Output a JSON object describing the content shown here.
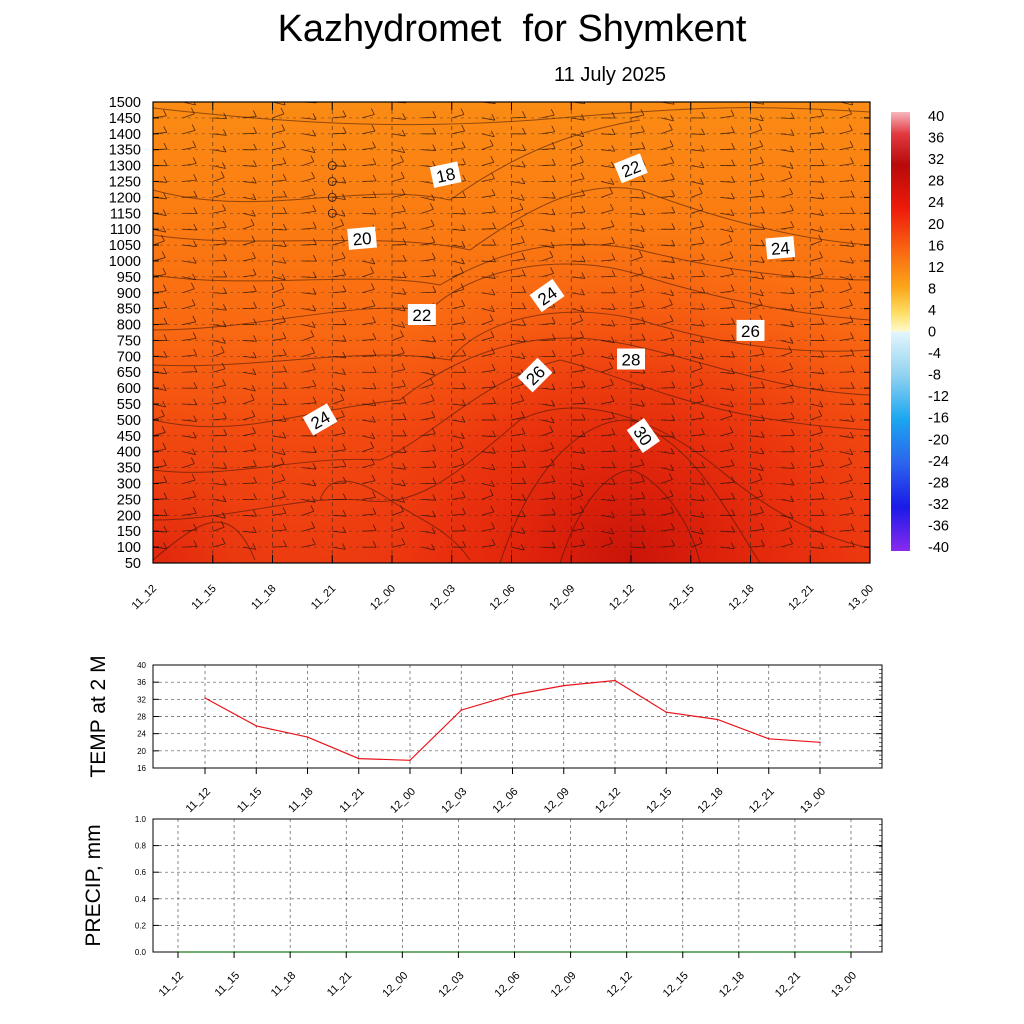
{
  "header": {
    "title": "Kazhydromet  for Shymkent",
    "date": "11 July 2025"
  },
  "time_labels": [
    "11_12",
    "11_15",
    "11_18",
    "11_21",
    "12_00",
    "12_03",
    "12_06",
    "12_09",
    "12_12",
    "12_15",
    "12_18",
    "12_21",
    "13_00"
  ],
  "chart_data": [
    {
      "type": "heatmap",
      "name": "vertical-cross-section",
      "x_tick_labels": [
        "11_12",
        "11_15",
        "11_18",
        "11_21",
        "12_00",
        "12_03",
        "12_06",
        "12_09",
        "12_12",
        "12_15",
        "12_18",
        "12_21",
        "13_00"
      ],
      "y_tick_labels": [
        "1500",
        "1450",
        "1400",
        "1350",
        "1300",
        "1250",
        "1200",
        "1150",
        "1100",
        "1050",
        "1000",
        "950",
        "900",
        "850",
        "800",
        "750",
        "700",
        "650",
        "600",
        "550",
        "500",
        "450",
        "400",
        "350",
        "300",
        "250",
        "200",
        "150",
        "100",
        "50"
      ],
      "ylim": [
        50,
        1500
      ],
      "colorbar": {
        "tick_labels": [
          "40",
          "36",
          "32",
          "28",
          "24",
          "20",
          "16",
          "12",
          "8",
          "4",
          "0",
          "-4",
          "-8",
          "-12",
          "-16",
          "-20",
          "-24",
          "-28",
          "-32",
          "-36",
          "-40"
        ],
        "range": [
          -40,
          40
        ]
      },
      "contour_labels": [
        {
          "text": "18",
          "t": 4.9,
          "h": 1270,
          "angle": -12
        },
        {
          "text": "22",
          "t": 8.0,
          "h": 1290,
          "angle": -22
        },
        {
          "text": "20",
          "t": 3.5,
          "h": 1070,
          "angle": -5
        },
        {
          "text": "24",
          "t": 10.5,
          "h": 1040,
          "angle": -5
        },
        {
          "text": "24",
          "t": 6.6,
          "h": 890,
          "angle": -35
        },
        {
          "text": "22",
          "t": 4.5,
          "h": 830,
          "angle": 0
        },
        {
          "text": "26",
          "t": 10.0,
          "h": 780,
          "angle": 0
        },
        {
          "text": "28",
          "t": 8.0,
          "h": 690,
          "angle": 0
        },
        {
          "text": "26",
          "t": 6.4,
          "h": 640,
          "angle": -45
        },
        {
          "text": "24",
          "t": 2.8,
          "h": 500,
          "angle": -30
        },
        {
          "text": "30",
          "t": 8.2,
          "h": 450,
          "angle": 55
        }
      ]
    },
    {
      "type": "line",
      "name": "temp-2m",
      "ylabel": "TEMP at 2 M",
      "ylim": [
        16,
        40
      ],
      "y_tick_labels": [
        "40",
        "36",
        "32",
        "28",
        "24",
        "20",
        "16"
      ],
      "categories": [
        "11_12",
        "11_15",
        "11_18",
        "11_21",
        "12_00",
        "12_03",
        "12_06",
        "12_09",
        "12_12",
        "12_15",
        "12_18",
        "12_21",
        "13_00"
      ],
      "values": [
        32.3,
        25.8,
        23.2,
        18.2,
        17.8,
        29.5,
        33.0,
        35.2,
        36.4,
        29.0,
        27.3,
        22.8,
        22.0
      ],
      "color": "#e8141c",
      "grid": true
    },
    {
      "type": "line",
      "name": "precip",
      "ylabel": "PRECIP, mm",
      "ylim": [
        0,
        1.0
      ],
      "y_tick_labels": [
        "1.0",
        "0.8",
        "0.6",
        "0.4",
        "0.2",
        "0.0"
      ],
      "categories": [
        "11_12",
        "11_15",
        "11_18",
        "11_21",
        "12_00",
        "12_03",
        "12_06",
        "12_09",
        "12_12",
        "12_15",
        "12_18",
        "12_21",
        "13_00"
      ],
      "values": [
        0,
        0,
        0,
        0,
        0,
        0,
        0,
        0,
        0,
        0,
        0,
        0,
        0
      ],
      "color": "#1a7a1a",
      "grid": true
    }
  ]
}
